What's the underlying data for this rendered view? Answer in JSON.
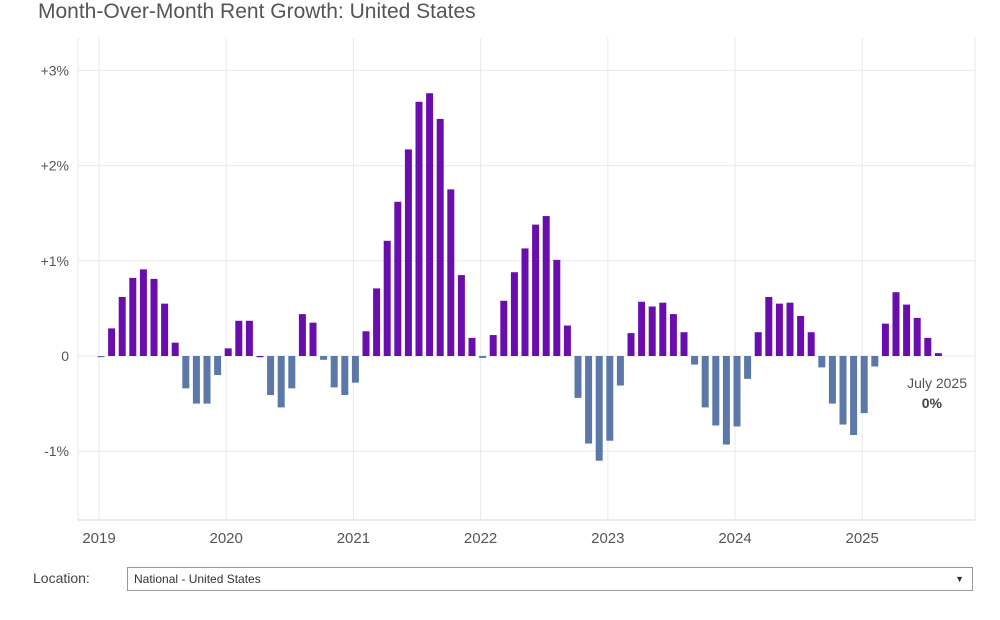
{
  "title": "Month-Over-Month Rent Growth: United States",
  "location": {
    "label": "Location:",
    "selected": "National - United States"
  },
  "colors": {
    "positive": "#6a0dad",
    "negative": "#5b78a8",
    "grid": "#e9e9e9",
    "axis_text": "#555555"
  },
  "chart_data": {
    "type": "bar",
    "x_start": "2019-01",
    "x_tick_labels": [
      "2019",
      "2020",
      "2021",
      "2022",
      "2023",
      "2024",
      "2025"
    ],
    "y_tick_labels": [
      "+3%",
      "+2%",
      "+1%",
      "0",
      "-1%"
    ],
    "y_ticks": [
      3,
      2,
      1,
      0,
      -1
    ],
    "ylim": [
      -1.7,
      3.3
    ],
    "grid": true,
    "values": [
      -0.01,
      0.29,
      0.62,
      0.82,
      0.91,
      0.81,
      0.55,
      0.14,
      -0.34,
      -0.5,
      -0.5,
      -0.2,
      0.08,
      0.37,
      0.37,
      0.0,
      -0.41,
      -0.54,
      -0.34,
      0.44,
      0.35,
      -0.04,
      -0.33,
      -0.41,
      -0.28,
      0.26,
      0.71,
      1.21,
      1.62,
      2.17,
      2.67,
      2.76,
      2.49,
      1.75,
      0.85,
      0.19,
      -0.02,
      0.22,
      0.58,
      0.88,
      1.13,
      1.38,
      1.47,
      1.01,
      0.32,
      -0.44,
      -0.92,
      -1.1,
      -0.89,
      -0.31,
      0.24,
      0.57,
      0.52,
      0.56,
      0.44,
      0.25,
      -0.09,
      -0.54,
      -0.73,
      -0.93,
      -0.74,
      -0.24,
      0.25,
      0.62,
      0.55,
      0.56,
      0.42,
      0.25,
      -0.12,
      -0.5,
      -0.72,
      -0.83,
      -0.6,
      -0.11,
      0.34,
      0.67,
      0.54,
      0.4,
      0.19,
      0.03
    ],
    "annotation": {
      "label": "July 2025",
      "value": "0%"
    }
  }
}
